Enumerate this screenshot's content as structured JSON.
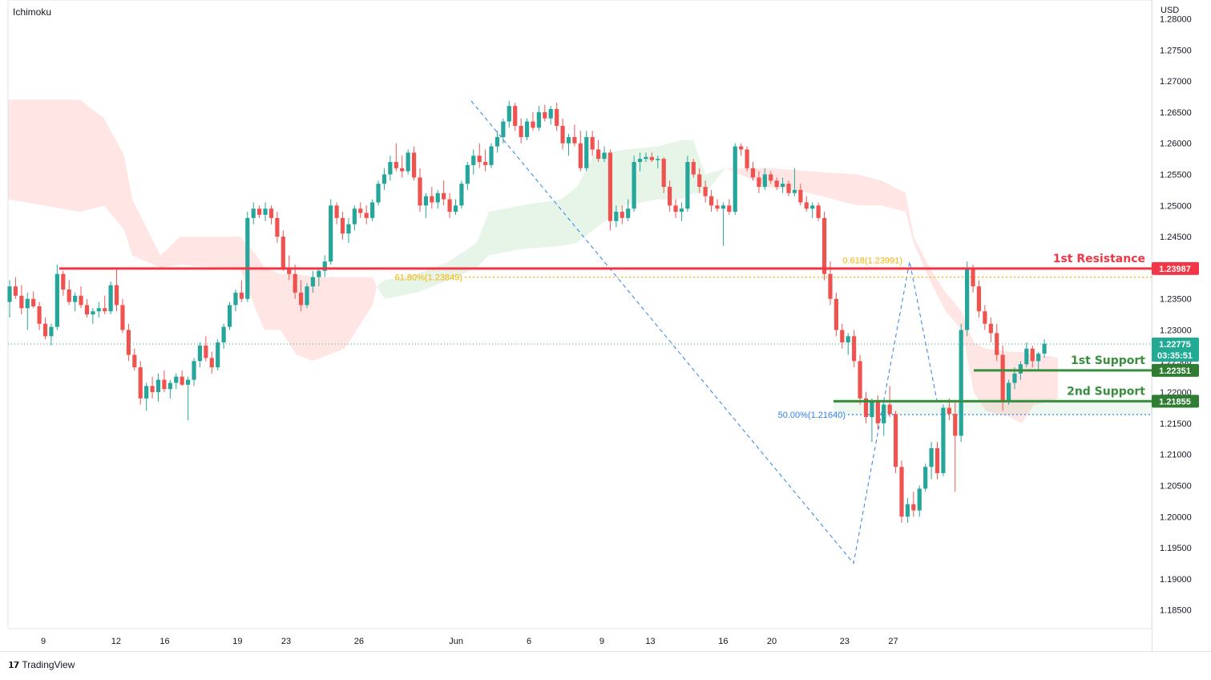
{
  "indicator_label": "Ichimoku",
  "currency_label": "USD",
  "brand": {
    "icon": "tradingview-logo-icon",
    "text": "TradingView"
  },
  "chart_data": {
    "type": "candlestick",
    "price_axis": {
      "min": 1.18,
      "max": 1.28,
      "ticks": [
        "1.18500",
        "1.19000",
        "1.19500",
        "1.20000",
        "1.20500",
        "1.21000",
        "1.21500",
        "1.22000",
        "1.22500",
        "1.23000",
        "1.23500",
        "1.24000",
        "1.24500",
        "1.25000",
        "1.25500",
        "1.26000",
        "1.26500",
        "1.27000",
        "1.27500",
        "1.28000"
      ]
    },
    "time_axis": {
      "ticks": [
        {
          "label": "9",
          "t": 0
        },
        {
          "label": "12",
          "t": 3
        },
        {
          "label": "16",
          "t": 5
        },
        {
          "label": "19",
          "t": 8
        },
        {
          "label": "23",
          "t": 10
        },
        {
          "label": "26",
          "t": 13
        },
        {
          "label": "Jun",
          "t": 17
        },
        {
          "label": "6",
          "t": 20
        },
        {
          "label": "9",
          "t": 23
        },
        {
          "label": "13",
          "t": 25
        },
        {
          "label": "16",
          "t": 28
        },
        {
          "label": "20",
          "t": 30
        },
        {
          "label": "23",
          "t": 33
        },
        {
          "label": "27",
          "t": 35
        }
      ]
    },
    "current_price": {
      "value": "1.22775",
      "timer": "03:35:51",
      "price": 1.22775
    },
    "levels": [
      {
        "name": "1st Resistance",
        "price": 1.23987,
        "label": "1.23987",
        "color": "#f23645"
      },
      {
        "name": "1st Support",
        "price": 1.22351,
        "label": "1.22351",
        "color": "#388e3c"
      },
      {
        "name": "2nd Support",
        "price": 1.21855,
        "label": "1.21855",
        "color": "#388e3c"
      }
    ],
    "fib_levels": [
      {
        "text": "61.80%(1.23849)",
        "price": 1.23849,
        "color": "#f5b300"
      },
      {
        "text": "0.618(1.23991)",
        "price": 1.23991,
        "color": "#f5b300"
      },
      {
        "text": "50.00%(1.21640)",
        "price": 1.2164,
        "color": "#2f80ed"
      }
    ],
    "candles": [
      [
        1.2345,
        1.238,
        1.232,
        1.237
      ],
      [
        1.237,
        1.2385,
        1.235,
        1.2355
      ],
      [
        1.2355,
        1.2372,
        1.2325,
        1.2335
      ],
      [
        1.2335,
        1.236,
        1.23,
        1.235
      ],
      [
        1.235,
        1.2362,
        1.2335,
        1.2338
      ],
      [
        1.2338,
        1.2345,
        1.23,
        1.231
      ],
      [
        1.231,
        1.232,
        1.2285,
        1.229
      ],
      [
        1.229,
        1.231,
        1.2275,
        1.2305
      ],
      [
        1.2305,
        1.2405,
        1.23,
        1.239
      ],
      [
        1.239,
        1.2395,
        1.2355,
        1.2365
      ],
      [
        1.2365,
        1.238,
        1.234,
        1.2345
      ],
      [
        1.2345,
        1.236,
        1.233,
        1.2355
      ],
      [
        1.2355,
        1.237,
        1.2335,
        1.234
      ],
      [
        1.234,
        1.235,
        1.232,
        1.2325
      ],
      [
        1.2325,
        1.2335,
        1.231,
        1.233
      ],
      [
        1.233,
        1.2345,
        1.232,
        1.2335
      ],
      [
        1.2335,
        1.2355,
        1.2325,
        1.233
      ],
      [
        1.233,
        1.2378,
        1.2325,
        1.2372
      ],
      [
        1.2372,
        1.24,
        1.233,
        1.234
      ],
      [
        1.234,
        1.235,
        1.2295,
        1.23
      ],
      [
        1.23,
        1.231,
        1.225,
        1.226
      ],
      [
        1.226,
        1.227,
        1.2235,
        1.224
      ],
      [
        1.224,
        1.225,
        1.218,
        1.219
      ],
      [
        1.219,
        1.2215,
        1.217,
        1.221
      ],
      [
        1.221,
        1.2225,
        1.219,
        1.22
      ],
      [
        1.22,
        1.223,
        1.2185,
        1.222
      ],
      [
        1.222,
        1.2235,
        1.22,
        1.2205
      ],
      [
        1.2205,
        1.222,
        1.219,
        1.2215
      ],
      [
        1.2215,
        1.223,
        1.2205,
        1.2225
      ],
      [
        1.2225,
        1.2235,
        1.221,
        1.2212
      ],
      [
        1.2212,
        1.2225,
        1.2155,
        1.222
      ],
      [
        1.222,
        1.2255,
        1.221,
        1.225
      ],
      [
        1.225,
        1.228,
        1.224,
        1.2275
      ],
      [
        1.2275,
        1.229,
        1.225,
        1.2255
      ],
      [
        1.2255,
        1.2265,
        1.223,
        1.224
      ],
      [
        1.224,
        1.2285,
        1.2235,
        1.228
      ],
      [
        1.228,
        1.231,
        1.227,
        1.2305
      ],
      [
        1.2305,
        1.2345,
        1.23,
        1.234
      ],
      [
        1.234,
        1.2365,
        1.233,
        1.236
      ],
      [
        1.236,
        1.238,
        1.2345,
        1.235
      ],
      [
        1.235,
        1.249,
        1.2345,
        1.248
      ],
      [
        1.248,
        1.2505,
        1.247,
        1.2495
      ],
      [
        1.2495,
        1.25,
        1.248,
        1.2485
      ],
      [
        1.2485,
        1.2505,
        1.2475,
        1.2495
      ],
      [
        1.2495,
        1.25,
        1.247,
        1.248
      ],
      [
        1.248,
        1.249,
        1.244,
        1.245
      ],
      [
        1.245,
        1.246,
        1.2395,
        1.24
      ],
      [
        1.24,
        1.242,
        1.238,
        1.239
      ],
      [
        1.239,
        1.2405,
        1.235,
        1.236
      ],
      [
        1.236,
        1.238,
        1.233,
        1.234
      ],
      [
        1.234,
        1.2375,
        1.2335,
        1.237
      ],
      [
        1.237,
        1.2395,
        1.236,
        1.2385
      ],
      [
        1.2385,
        1.24,
        1.237,
        1.2395
      ],
      [
        1.2395,
        1.242,
        1.2385,
        1.241
      ],
      [
        1.241,
        1.251,
        1.2405,
        1.25
      ],
      [
        1.25,
        1.2505,
        1.247,
        1.248
      ],
      [
        1.248,
        1.249,
        1.2445,
        1.2455
      ],
      [
        1.2455,
        1.248,
        1.244,
        1.247
      ],
      [
        1.247,
        1.25,
        1.246,
        1.2495
      ],
      [
        1.2495,
        1.2505,
        1.248,
        1.2488
      ],
      [
        1.2488,
        1.25,
        1.247,
        1.248
      ],
      [
        1.248,
        1.251,
        1.2475,
        1.2505
      ],
      [
        1.2505,
        1.254,
        1.25,
        1.2535
      ],
      [
        1.2535,
        1.256,
        1.2525,
        1.255
      ],
      [
        1.255,
        1.258,
        1.254,
        1.257
      ],
      [
        1.257,
        1.26,
        1.2555,
        1.256
      ],
      [
        1.256,
        1.258,
        1.2545,
        1.2555
      ],
      [
        1.2555,
        1.259,
        1.255,
        1.2585
      ],
      [
        1.2585,
        1.2595,
        1.254,
        1.2545
      ],
      [
        1.2545,
        1.256,
        1.249,
        1.25
      ],
      [
        1.25,
        1.252,
        1.248,
        1.2515
      ],
      [
        1.2515,
        1.253,
        1.2495,
        1.2505
      ],
      [
        1.2505,
        1.2525,
        1.2495,
        1.252
      ],
      [
        1.252,
        1.254,
        1.25,
        1.251
      ],
      [
        1.251,
        1.252,
        1.248,
        1.249
      ],
      [
        1.249,
        1.251,
        1.2485,
        1.25
      ],
      [
        1.25,
        1.254,
        1.2495,
        1.2535
      ],
      [
        1.2535,
        1.257,
        1.2525,
        1.2565
      ],
      [
        1.2565,
        1.259,
        1.255,
        1.258
      ],
      [
        1.258,
        1.26,
        1.256,
        1.257
      ],
      [
        1.257,
        1.259,
        1.2555,
        1.2565
      ],
      [
        1.2565,
        1.26,
        1.256,
        1.2595
      ],
      [
        1.2595,
        1.262,
        1.2585,
        1.261
      ],
      [
        1.261,
        1.264,
        1.26,
        1.2635
      ],
      [
        1.2635,
        1.2668,
        1.2625,
        1.266
      ],
      [
        1.266,
        1.2665,
        1.262,
        1.2628
      ],
      [
        1.2628,
        1.264,
        1.26,
        1.261
      ],
      [
        1.261,
        1.264,
        1.2605,
        1.2635
      ],
      [
        1.2635,
        1.265,
        1.262,
        1.2625
      ],
      [
        1.2625,
        1.266,
        1.262,
        1.265
      ],
      [
        1.265,
        1.2662,
        1.2635,
        1.264
      ],
      [
        1.264,
        1.266,
        1.263,
        1.2655
      ],
      [
        1.2655,
        1.2665,
        1.262,
        1.2628
      ],
      [
        1.2628,
        1.264,
        1.259,
        1.26
      ],
      [
        1.26,
        1.2615,
        1.258,
        1.261
      ],
      [
        1.261,
        1.263,
        1.2595,
        1.26
      ],
      [
        1.26,
        1.262,
        1.2555,
        1.256
      ],
      [
        1.256,
        1.262,
        1.2555,
        1.261
      ],
      [
        1.261,
        1.262,
        1.258,
        1.259
      ],
      [
        1.259,
        1.2605,
        1.257,
        1.2575
      ],
      [
        1.2575,
        1.2595,
        1.257,
        1.2585
      ],
      [
        1.2585,
        1.259,
        1.246,
        1.2475
      ],
      [
        1.2475,
        1.25,
        1.2465,
        1.249
      ],
      [
        1.249,
        1.25,
        1.247,
        1.248
      ],
      [
        1.248,
        1.251,
        1.2475,
        1.2495
      ],
      [
        1.2495,
        1.258,
        1.249,
        1.257
      ],
      [
        1.257,
        1.2585,
        1.2555,
        1.2575
      ],
      [
        1.2575,
        1.2585,
        1.257,
        1.2578
      ],
      [
        1.2578,
        1.2585,
        1.257,
        1.2573
      ],
      [
        1.2573,
        1.258,
        1.256,
        1.2575
      ],
      [
        1.2575,
        1.2578,
        1.252,
        1.253
      ],
      [
        1.253,
        1.254,
        1.249,
        1.25
      ],
      [
        1.25,
        1.251,
        1.248,
        1.249
      ],
      [
        1.249,
        1.2505,
        1.2475,
        1.2495
      ],
      [
        1.2495,
        1.258,
        1.249,
        1.257
      ],
      [
        1.257,
        1.2575,
        1.2545,
        1.255
      ],
      [
        1.255,
        1.256,
        1.252,
        1.253
      ],
      [
        1.253,
        1.254,
        1.2505,
        1.2515
      ],
      [
        1.2515,
        1.2525,
        1.249,
        1.25
      ],
      [
        1.25,
        1.251,
        1.249,
        1.2495
      ],
      [
        1.2495,
        1.2505,
        1.2435,
        1.25
      ],
      [
        1.25,
        1.251,
        1.2485,
        1.249
      ],
      [
        1.249,
        1.26,
        1.2485,
        1.2595
      ],
      [
        1.2595,
        1.26,
        1.258,
        1.259
      ],
      [
        1.259,
        1.2595,
        1.2555,
        1.256
      ],
      [
        1.256,
        1.257,
        1.254,
        1.2545
      ],
      [
        1.2545,
        1.2555,
        1.252,
        1.253
      ],
      [
        1.253,
        1.256,
        1.2525,
        1.255
      ],
      [
        1.255,
        1.2555,
        1.2535,
        1.254
      ],
      [
        1.254,
        1.2545,
        1.2525,
        1.253
      ],
      [
        1.253,
        1.2545,
        1.252,
        1.2535
      ],
      [
        1.2535,
        1.254,
        1.2515,
        1.252
      ],
      [
        1.252,
        1.256,
        1.2515,
        1.2525
      ],
      [
        1.2525,
        1.2535,
        1.25,
        1.2505
      ],
      [
        1.2505,
        1.2515,
        1.249,
        1.2495
      ],
      [
        1.2495,
        1.2505,
        1.248,
        1.25
      ],
      [
        1.25,
        1.2505,
        1.2475,
        1.248
      ],
      [
        1.248,
        1.249,
        1.238,
        1.239
      ],
      [
        1.239,
        1.241,
        1.234,
        1.235
      ],
      [
        1.235,
        1.236,
        1.229,
        1.23
      ],
      [
        1.23,
        1.231,
        1.227,
        1.228
      ],
      [
        1.228,
        1.2295,
        1.226,
        1.229
      ],
      [
        1.229,
        1.23,
        1.224,
        1.225
      ],
      [
        1.225,
        1.226,
        1.218,
        1.219
      ],
      [
        1.219,
        1.22,
        1.215,
        1.216
      ],
      [
        1.216,
        1.219,
        1.212,
        1.2185
      ],
      [
        1.2185,
        1.2195,
        1.214,
        1.215
      ],
      [
        1.215,
        1.2185,
        1.213,
        1.218
      ],
      [
        1.218,
        1.221,
        1.216,
        1.2165
      ],
      [
        1.2165,
        1.217,
        1.207,
        1.208
      ],
      [
        1.208,
        1.209,
        1.199,
        1.2
      ],
      [
        1.2,
        1.203,
        1.199,
        1.202
      ],
      [
        1.202,
        1.204,
        1.2,
        1.201
      ],
      [
        1.201,
        1.205,
        1.2,
        1.2045
      ],
      [
        1.2045,
        1.2085,
        1.204,
        1.208
      ],
      [
        1.208,
        1.212,
        1.206,
        1.211
      ],
      [
        1.211,
        1.212,
        1.206,
        1.207
      ],
      [
        1.207,
        1.218,
        1.2065,
        1.2175
      ],
      [
        1.2175,
        1.219,
        1.2155,
        1.2165
      ],
      [
        1.2165,
        1.2185,
        1.204,
        1.213
      ],
      [
        1.213,
        1.231,
        1.212,
        1.23
      ],
      [
        1.23,
        1.241,
        1.229,
        1.24
      ],
      [
        1.24,
        1.2405,
        1.236,
        1.237
      ],
      [
        1.237,
        1.238,
        1.232,
        1.233
      ],
      [
        1.233,
        1.234,
        1.23,
        1.231
      ],
      [
        1.231,
        1.232,
        1.228,
        1.2295
      ],
      [
        1.2295,
        1.231,
        1.225,
        1.226
      ],
      [
        1.226,
        1.2275,
        1.217,
        1.2185
      ],
      [
        1.2185,
        1.222,
        1.218,
        1.2215
      ],
      [
        1.2215,
        1.224,
        1.2205,
        1.223
      ],
      [
        1.223,
        1.225,
        1.222,
        1.2245
      ],
      [
        1.2245,
        1.228,
        1.224,
        1.227
      ],
      [
        1.227,
        1.2275,
        1.224,
        1.225
      ],
      [
        1.225,
        1.2265,
        1.2235,
        1.2262
      ],
      [
        1.2262,
        1.2285,
        1.2255,
        1.2278
      ]
    ]
  }
}
